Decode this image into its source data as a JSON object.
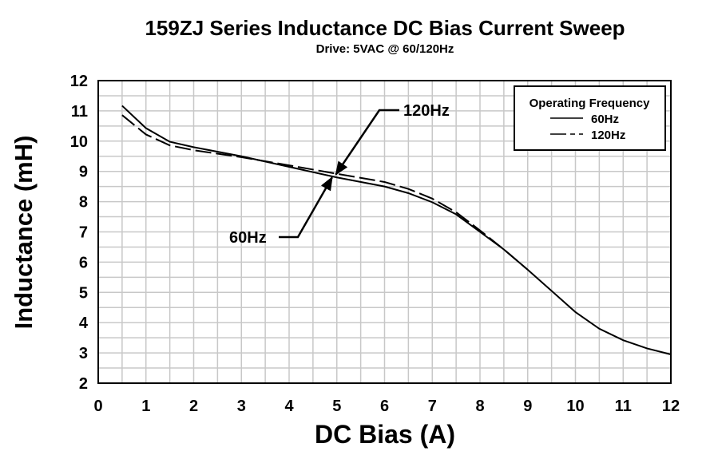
{
  "chart_data": {
    "type": "line",
    "title": "159ZJ Series Inductance DC Bias Current Sweep",
    "subtitle": "Drive: 5VAC @ 60/120Hz",
    "xlabel": "DC Bias (A)",
    "ylabel": "Inductance (mH)",
    "xlim": [
      0,
      12
    ],
    "ylim": [
      2,
      12
    ],
    "xticks": [
      0,
      1,
      2,
      3,
      4,
      5,
      6,
      7,
      8,
      9,
      10,
      11,
      12
    ],
    "yticks": [
      2,
      3,
      4,
      5,
      6,
      7,
      8,
      9,
      10,
      11,
      12
    ],
    "grid": true,
    "grid_minor_step": 0.5,
    "legend": {
      "title": "Operating Frequency",
      "placement": "top-right"
    },
    "series": [
      {
        "name": "60Hz",
        "style": "solid",
        "x": [
          0.5,
          1,
          1.5,
          2,
          3,
          4,
          5,
          6,
          6.5,
          7,
          7.5,
          8,
          8.5,
          9,
          9.5,
          10,
          10.5,
          11,
          11.5,
          12
        ],
        "y": [
          11.17,
          10.43,
          9.98,
          9.8,
          9.5,
          9.15,
          8.8,
          8.5,
          8.28,
          7.98,
          7.58,
          7.0,
          6.42,
          5.75,
          5.05,
          4.35,
          3.8,
          3.42,
          3.15,
          2.95
        ]
      },
      {
        "name": "120Hz",
        "style": "dashed",
        "x": [
          0.5,
          1,
          1.5,
          2,
          3,
          4,
          5,
          6,
          6.5,
          7,
          7.5,
          8,
          8.5,
          9
        ],
        "y": [
          10.86,
          10.22,
          9.86,
          9.7,
          9.47,
          9.2,
          8.92,
          8.65,
          8.42,
          8.1,
          7.65,
          7.05,
          6.42,
          5.75
        ]
      }
    ],
    "annotations": [
      {
        "text": "120Hz",
        "x": 4.98,
        "y": 8.9
      },
      {
        "text": "60Hz",
        "x": 4.9,
        "y": 8.8
      }
    ],
    "colors": {
      "line": "#000000",
      "grid": "#c8c8c8"
    }
  }
}
